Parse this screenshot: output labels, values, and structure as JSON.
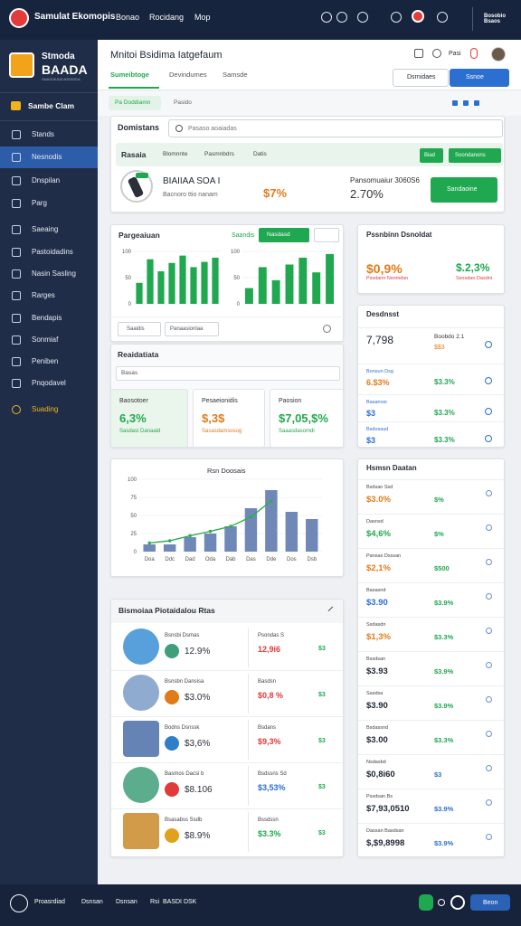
{
  "topbar": {
    "brand": "Samulat Ekomopis",
    "nav": [
      "Bonao",
      "Rocidang",
      "Mop"
    ],
    "user": "Bosobio Bsaos"
  },
  "sidebar": {
    "logo_top": "Stmoda",
    "logo_main": "BAADA",
    "logo_sub": "SNASOIUDA NSDIODA",
    "group": "Sambe Clam",
    "items": [
      "Stands",
      "Nesnodis",
      "Dnspilan",
      "Parg",
      "Saeaing",
      "Pastoidadins",
      "Nasin Sasling",
      "Rarges",
      "Bendapis",
      "Sonmiaf",
      "Peniben",
      "Pnqodavel"
    ],
    "active": 1,
    "bottom_item": "Suading"
  },
  "header": {
    "title": "Mnitoi Bsidima Iatgefaum",
    "tabs": [
      "Sumeibtoge",
      "Devindumes",
      "Samsde"
    ],
    "active_tab": 0,
    "buttons": [
      "Dsrnidaes",
      "Ssnoe"
    ],
    "tag": "Pasi"
  },
  "subbar": {
    "tabs": [
      "Pa Doddiamn",
      "Pasido"
    ]
  },
  "search": {
    "label": "Domistans",
    "placeholder": "Pasaso aoaiadas"
  },
  "filters": {
    "label": "Rasaia",
    "chips": [
      "Blomnnte",
      "Pasmnbdrs",
      "Datis"
    ],
    "buttons": [
      "Biad",
      "Soondanons"
    ]
  },
  "product": {
    "name": "BIAIIAA SOA I",
    "desc": "Bacnoro ttio nanam",
    "value": "$7%",
    "stat_label": "Pansomuaiur 3060S6",
    "stat_value": "2.70%",
    "button": "Sandaoine"
  },
  "chart_panel": {
    "title": "Pargeaiuan",
    "label": "Saandis",
    "button": "Nasdasd",
    "controls": [
      "Saaidis",
      "Panaasionlaa"
    ],
    "chart_a": {
      "type": "bar",
      "color": "#1fa84f",
      "ylim": [
        0,
        100
      ],
      "yticks": [
        0,
        50,
        100
      ],
      "values": [
        40,
        85,
        62,
        78,
        92,
        70,
        80,
        88
      ]
    },
    "chart_b": {
      "type": "bar",
      "color": "#1fa84f",
      "ylim": [
        0,
        100
      ],
      "yticks": [
        0,
        50,
        100
      ],
      "values": [
        30,
        70,
        45,
        75,
        88,
        60,
        95
      ]
    }
  },
  "metrics": {
    "title": "Reaidatiata",
    "placeholder": "Basas",
    "cards": [
      {
        "title": "Baosotoer",
        "value": "6,3%",
        "note": "Sasdasi Danaaid"
      },
      {
        "title": "Pesaeionidis",
        "value": "$,3$",
        "note": "Sasasdamsosog"
      },
      {
        "title": "Paosion",
        "value": "$7,05,$%",
        "note": "Saaasdasomdi"
      }
    ]
  },
  "trend": {
    "type": "bar",
    "title": "Rsn Doosais",
    "categories": [
      "Doa",
      "Ddc",
      "Dad",
      "Oda",
      "Dab",
      "Das",
      "Dde",
      "Dos",
      "Dsb"
    ],
    "ylim": [
      0,
      100
    ],
    "yticks": [
      0,
      25,
      50,
      75,
      100
    ],
    "values": [
      10,
      10,
      20,
      25,
      35,
      60,
      85,
      55,
      45
    ],
    "color": "#7088b8",
    "line": [
      12,
      15,
      22,
      28,
      35,
      48,
      70,
      null,
      null
    ],
    "line_color": "#2fae4f"
  },
  "table": {
    "title": "Bismoiaa Piotaidalou Rtas",
    "rows": [
      {
        "title": "Bsnsbi Dsmas",
        "value": "12.9%",
        "note": "Psondas S",
        "r1": "12,9i6",
        "r2": "$3"
      },
      {
        "title": "Bsnsbn Dansisa",
        "value": "$3.0%",
        "note": "Basdsn",
        "r1": "$0,8 %",
        "r2": "$3"
      },
      {
        "title": "Bodns Dsnssk",
        "value": "$3,6%",
        "note": "Bsdans",
        "r1": "$9,3%",
        "r2": "$3"
      },
      {
        "title": "Basmos Dacsi b",
        "value": "$8.106",
        "note": "Bsdssns Sd",
        "r1": "$3,53%",
        "r2": "$3"
      },
      {
        "title": "Bsasabss Ssdb",
        "value": "$8.9%",
        "note": "Bssdssn",
        "r1": "$3.3%",
        "r2": "$3"
      }
    ]
  },
  "summary": {
    "title": "Pssnbinn Dsnoldat",
    "values": [
      "$0,9%",
      "$.2,3%"
    ],
    "notes": [
      "Pssdann Nsnmdsn",
      "Ssosdan Dasdni"
    ]
  },
  "list": {
    "title": "Desdnsst",
    "rows": [
      {
        "label": "Boobdo 2.1",
        "left": "7,798",
        "right": "$$3"
      },
      {
        "label": "Bonsun Dsg",
        "left": "6.$3%",
        "right": "$3.3%"
      },
      {
        "label": "Basanosi",
        "left": "$3",
        "right": "$3.3%"
      },
      {
        "label": "Bsdosasd",
        "left": "$3",
        "right": "$3.3%"
      }
    ]
  },
  "details": {
    "title": "Hsmsn Daatan",
    "rows": [
      {
        "label": "Bsdsan Ssd",
        "left": "$3.0%",
        "right": "$%"
      },
      {
        "label": "Dasnsd",
        "left": "$4,6%",
        "right": "$%"
      },
      {
        "label": "Pansas Dsssan",
        "left": "$2,1%",
        "right": "$500"
      },
      {
        "label": "Basasnd",
        "left": "$3.90",
        "right": "$3.9%"
      },
      {
        "label": "Ssdasdn",
        "left": "$1,3%",
        "right": "$3.3%"
      },
      {
        "label": "Bssdsan",
        "left": "$3.93",
        "right": "$3.9%"
      },
      {
        "label": "Sasdsa",
        "left": "$3.90",
        "right": "$3.9%"
      },
      {
        "label": "Bsdassnd",
        "left": "$3.00",
        "right": "$3.3%"
      },
      {
        "label": "Nsdasbd",
        "left": "$0,8i60",
        "right": "$3"
      },
      {
        "label": "Pssdsan Bs",
        "left": "$7,93,0510",
        "right": "$3.9%"
      },
      {
        "label": "Dassan Basdsan",
        "left": "$,$9,8998",
        "right": "$3.9%"
      }
    ]
  },
  "footer": {
    "items": [
      "Proasrdiad",
      "Dsnsan",
      "Dsnsan",
      "Rsi",
      "BASDI DSK"
    ],
    "button": "Beon"
  }
}
